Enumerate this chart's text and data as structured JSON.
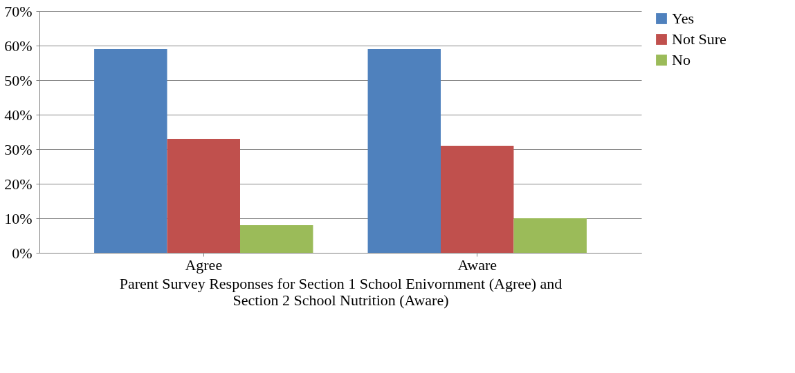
{
  "chart_data": {
    "type": "bar",
    "xlabel": "Parent Survey Responses for Section 1 School Enivornment (Agree) and\nSection 2 School Nutrition  (Aware)",
    "categories": [
      "Agree",
      "Aware"
    ],
    "series": [
      {
        "name": "Yes",
        "color": "#4f81bd",
        "values": [
          59,
          59
        ]
      },
      {
        "name": "Not Sure",
        "color": "#c0504d",
        "values": [
          33,
          31
        ]
      },
      {
        "name": "No",
        "color": "#9bbb59",
        "values": [
          8,
          10
        ]
      }
    ],
    "ylim": [
      0,
      70
    ],
    "yticks": [
      {
        "value": 0,
        "label": "0%"
      },
      {
        "value": 10,
        "label": "10%"
      },
      {
        "value": 20,
        "label": "20%"
      },
      {
        "value": 30,
        "label": "30%"
      },
      {
        "value": 40,
        "label": "40%"
      },
      {
        "value": 50,
        "label": "50%"
      },
      {
        "value": 60,
        "label": "60%"
      },
      {
        "value": 70,
        "label": "70%"
      }
    ],
    "grid": "y",
    "legend": "right"
  }
}
